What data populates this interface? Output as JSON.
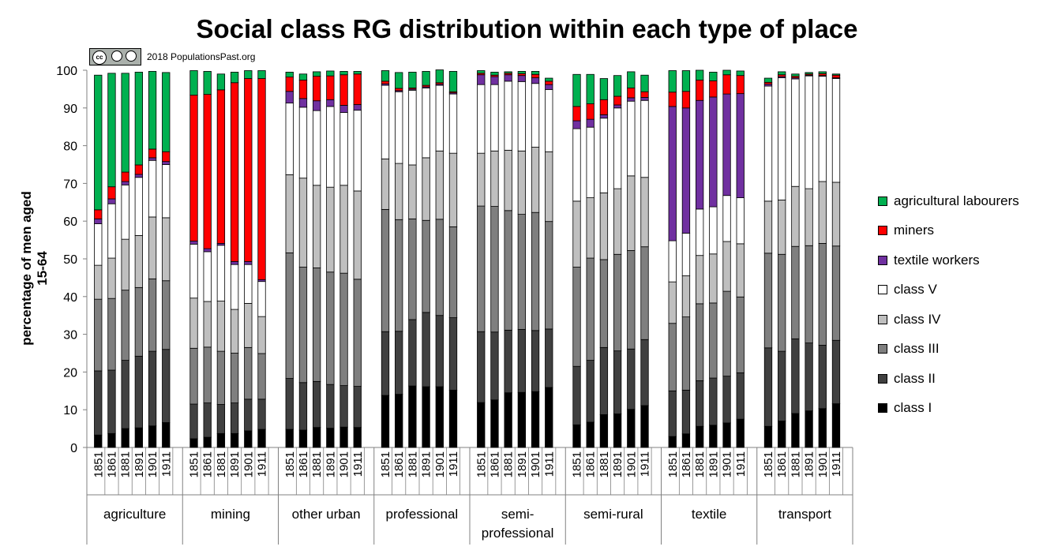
{
  "chart_data": {
    "type": "bar",
    "stacked": true,
    "title": "Social class RG distribution within each type of place",
    "ylabel": "percentage of men aged 15-64",
    "xlabel": "",
    "ylim": [
      0,
      100
    ],
    "yticks": [
      0,
      10,
      20,
      30,
      40,
      50,
      60,
      70,
      80,
      90,
      100
    ],
    "years": [
      "1851",
      "1861",
      "1881",
      "1891",
      "1901",
      "1911"
    ],
    "groups": [
      {
        "label": "agriculture"
      },
      {
        "label": "mining"
      },
      {
        "label": "other urban"
      },
      {
        "label": "professional"
      },
      {
        "label": "semi-\nprofessional"
      },
      {
        "label": "semi-rural"
      },
      {
        "label": "textile"
      },
      {
        "label": "transport"
      }
    ],
    "series": [
      {
        "name": "class I",
        "color": "#000000",
        "values": [
          [
            3.3,
            3.7,
            5,
            5.2,
            5.7,
            6.6
          ],
          [
            2.3,
            2.7,
            3.7,
            3.7,
            4.4,
            4.8
          ],
          [
            4.8,
            4.6,
            5.3,
            5.1,
            5.4,
            5.3
          ],
          [
            13.8,
            14.1,
            16.3,
            16.1,
            16.1,
            15.2
          ],
          [
            11.9,
            12.6,
            14.5,
            14.6,
            14.8,
            15.9
          ],
          [
            6,
            6.7,
            8.7,
            8.9,
            10.1,
            11.1
          ],
          [
            2.9,
            3.6,
            5.6,
            5.9,
            6.5,
            7.5
          ],
          [
            5.6,
            7,
            9,
            9.7,
            10.3,
            11.6
          ]
        ]
      },
      {
        "name": "class II",
        "color": "#404040",
        "values": [
          [
            17,
            16.8,
            18.1,
            19,
            19.8,
            19.4
          ],
          [
            9.2,
            9.1,
            7.7,
            8.1,
            8.4,
            8
          ],
          [
            13.5,
            12.6,
            12.2,
            11.6,
            11,
            10.9
          ],
          [
            16.9,
            16.7,
            17.6,
            19.7,
            18.9,
            19.2
          ],
          [
            18.8,
            18,
            16.6,
            16.7,
            16.2,
            15.5
          ],
          [
            15.5,
            16.4,
            17.8,
            16.7,
            16,
            17.5
          ],
          [
            12.1,
            11.6,
            12.1,
            12.5,
            12.4,
            12.3
          ],
          [
            20.8,
            18.5,
            19.8,
            18,
            16.8,
            16.8
          ]
        ]
      },
      {
        "name": "class III",
        "color": "#7f7f7f",
        "values": [
          [
            19,
            19,
            18.6,
            18.2,
            19.2,
            18.2
          ],
          [
            14.8,
            14.8,
            14.1,
            13.2,
            13.7,
            12.1
          ],
          [
            33.3,
            30.6,
            30.1,
            29.8,
            29.8,
            28.4
          ],
          [
            32.4,
            29.6,
            26.7,
            24.4,
            25.5,
            24.1
          ],
          [
            33.3,
            33.3,
            31.7,
            30.5,
            31.3,
            28.5
          ],
          [
            26.3,
            27.1,
            23.3,
            25.6,
            26.1,
            24.6
          ],
          [
            17.9,
            19.4,
            20.4,
            19.9,
            22.5,
            20.1
          ],
          [
            25.1,
            25.7,
            24.5,
            25.8,
            27,
            25
          ]
        ]
      },
      {
        "name": "class IV",
        "color": "#bfbfbf",
        "values": [
          [
            9,
            10.7,
            13.5,
            13.8,
            16.4,
            16.7
          ],
          [
            13.3,
            12.1,
            13.3,
            11.6,
            11.7,
            9.8
          ],
          [
            20.7,
            23.6,
            21.9,
            22.5,
            23.3,
            23.4
          ],
          [
            13.4,
            14.9,
            14.3,
            16.6,
            18.1,
            19.5
          ],
          [
            14,
            14.7,
            16,
            16.8,
            17.3,
            18.5
          ],
          [
            17.5,
            16,
            17.7,
            17.4,
            19.8,
            18.4
          ],
          [
            11,
            10.9,
            12.8,
            13,
            13.2,
            14.1
          ],
          [
            13.8,
            14.4,
            15.9,
            15.1,
            16.4,
            16.9
          ]
        ]
      },
      {
        "name": "class V",
        "color": "#ffffff",
        "values": [
          [
            11,
            14.4,
            14.4,
            15.4,
            15,
            14.1
          ],
          [
            14.3,
            13.2,
            14.8,
            11.9,
            10.3,
            9.3
          ],
          [
            19,
            18.8,
            19.8,
            21.4,
            19.3,
            21.4
          ],
          [
            19.5,
            19,
            19.8,
            18.5,
            17.4,
            15.7
          ],
          [
            18.2,
            17.6,
            18.3,
            18.4,
            16.9,
            16.5
          ],
          [
            19.2,
            18.7,
            19.8,
            21.4,
            19.8,
            20.4
          ],
          [
            10.9,
            11.3,
            12.3,
            12.5,
            12.2,
            12.2
          ],
          [
            30.5,
            32.4,
            28.5,
            29.9,
            27.9,
            27.5
          ]
        ]
      },
      {
        "name": "textile workers",
        "color": "#7030a0",
        "values": [
          [
            1.3,
            1.3,
            0.9,
            0.8,
            0.7,
            0.8
          ],
          [
            0.8,
            0.8,
            0.5,
            0.8,
            0.8,
            0.5
          ],
          [
            3.1,
            2.3,
            2.6,
            1.8,
            1.9,
            1.5
          ],
          [
            0.4,
            0.3,
            0.3,
            0.3,
            0.3,
            0.3
          ],
          [
            2.6,
            2.1,
            1.7,
            1.6,
            1.5,
            1.3
          ],
          [
            2.1,
            2.1,
            0.9,
            0.8,
            0.9,
            0.8
          ],
          [
            35.6,
            33.2,
            28.8,
            29.1,
            26.9,
            27.6
          ],
          [
            0.5,
            0.3,
            0.3,
            0.2,
            0.2,
            0.2
          ]
        ]
      },
      {
        "name": "miners",
        "color": "#ff0000",
        "values": [
          [
            2.4,
            3.2,
            2.5,
            2.5,
            2.3,
            2.6
          ],
          [
            38.7,
            40.9,
            40.7,
            47.4,
            48.5,
            53.3
          ],
          [
            3.8,
            4.9,
            6.5,
            6.3,
            8.1,
            8.1
          ],
          [
            0.7,
            0.6,
            0.3,
            0.4,
            0.4,
            0.3
          ],
          [
            0.4,
            0.4,
            0.4,
            0.5,
            0.9,
            0.9
          ],
          [
            3.8,
            4.1,
            4,
            2.3,
            2.6,
            1.5
          ],
          [
            3.8,
            4.4,
            5.4,
            4.3,
            5.1,
            4.8
          ],
          [
            0.5,
            0.5,
            0.4,
            0.3,
            0.5,
            0.7
          ]
        ]
      },
      {
        "name": "agricultural labourers",
        "color": "#00b050",
        "values": [
          [
            35.7,
            30.1,
            26.2,
            24.6,
            20.6,
            21
          ],
          [
            6.5,
            6.1,
            4.2,
            2.8,
            2.1,
            2.1
          ],
          [
            1.3,
            1.6,
            1.2,
            1.3,
            0.9,
            0.7
          ],
          [
            2.8,
            4.2,
            4.2,
            3.7,
            3.4,
            5.4
          ],
          [
            0.7,
            0.8,
            0.4,
            0.6,
            0.8,
            0.8
          ],
          [
            8.5,
            7.8,
            5.6,
            5.5,
            4.3,
            4.4
          ],
          [
            5.7,
            5.5,
            2.6,
            2.3,
            1.2,
            1.2
          ],
          [
            1.1,
            0.8,
            0.6,
            0.4,
            0.5,
            0.3
          ]
        ]
      }
    ],
    "legend_position": "right",
    "legend_order": [
      "agricultural labourers",
      "miners",
      "textile workers",
      "class V",
      "class IV",
      "class III",
      "class II",
      "class I"
    ]
  },
  "copyright": "2018 PopulationsPast.org",
  "license_badge": {
    "text": "cc"
  }
}
